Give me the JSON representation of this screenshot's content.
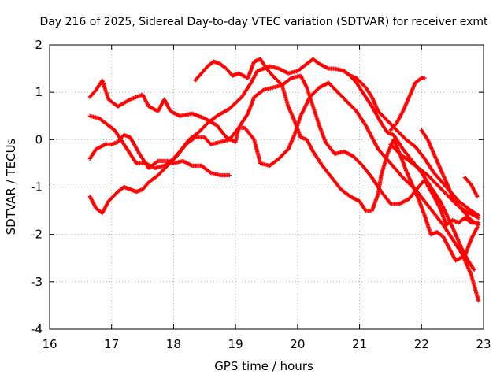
{
  "chart_data": {
    "type": "scatter",
    "title": "Day 216 of 2025, Sidereal Day-to-day VTEC variation (SDTVAR) for receiver exmt",
    "xlabel": "GPS time / hours",
    "ylabel": "SDTVAR / TECUs",
    "xlim": [
      16,
      23
    ],
    "ylim": [
      -4,
      2
    ],
    "xticks": [
      16,
      17,
      18,
      19,
      20,
      21,
      22,
      23
    ],
    "yticks": [
      -4,
      -3,
      -2,
      -1,
      0,
      1,
      2
    ],
    "grid": true,
    "marker": "plus",
    "color": "#ff0000",
    "series": [
      {
        "name": "track-1",
        "points": [
          [
            16.65,
            0.9
          ],
          [
            16.75,
            1.05
          ],
          [
            16.85,
            1.25
          ],
          [
            16.95,
            0.85
          ],
          [
            17.1,
            0.7
          ],
          [
            17.3,
            0.85
          ],
          [
            17.5,
            0.95
          ],
          [
            17.6,
            0.7
          ],
          [
            17.75,
            0.6
          ],
          [
            17.85,
            0.85
          ],
          [
            17.95,
            0.6
          ],
          [
            18.1,
            0.5
          ],
          [
            18.3,
            0.55
          ],
          [
            18.5,
            0.45
          ],
          [
            18.7,
            0.3
          ],
          [
            18.85,
            0.05
          ],
          [
            19.0,
            -0.05
          ],
          [
            19.05,
            0.25
          ],
          [
            19.15,
            0.25
          ],
          [
            19.3,
            0.0
          ],
          [
            19.4,
            -0.5
          ],
          [
            19.55,
            -0.55
          ],
          [
            19.7,
            -0.4
          ],
          [
            19.85,
            -0.2
          ],
          [
            19.95,
            0.1
          ],
          [
            20.05,
            0.5
          ],
          [
            20.2,
            0.9
          ],
          [
            20.35,
            1.1
          ],
          [
            20.5,
            1.2
          ],
          [
            20.65,
            1.0
          ],
          [
            20.8,
            0.8
          ],
          [
            20.95,
            0.6
          ],
          [
            21.1,
            0.3
          ],
          [
            21.2,
            0.05
          ],
          [
            21.3,
            -0.2
          ],
          [
            21.5,
            -0.5
          ],
          [
            21.7,
            -0.8
          ],
          [
            21.9,
            -1.05
          ],
          [
            22.05,
            -1.3
          ],
          [
            22.2,
            -1.55
          ],
          [
            22.35,
            -1.8
          ],
          [
            22.5,
            -2.1
          ],
          [
            22.65,
            -2.4
          ],
          [
            22.8,
            -2.85
          ],
          [
            22.92,
            -3.4
          ]
        ]
      },
      {
        "name": "track-2",
        "points": [
          [
            16.65,
            0.5
          ],
          [
            16.8,
            0.45
          ],
          [
            16.95,
            0.3
          ],
          [
            17.05,
            0.2
          ],
          [
            17.15,
            0.0
          ],
          [
            17.3,
            -0.3
          ],
          [
            17.4,
            -0.5
          ],
          [
            17.55,
            -0.5
          ],
          [
            17.7,
            -0.6
          ],
          [
            17.85,
            -0.55
          ],
          [
            18.0,
            -0.4
          ],
          [
            18.1,
            -0.25
          ],
          [
            18.25,
            0.0
          ],
          [
            18.4,
            0.15
          ],
          [
            18.55,
            0.35
          ],
          [
            18.7,
            0.5
          ],
          [
            18.9,
            0.65
          ],
          [
            19.1,
            0.9
          ],
          [
            19.25,
            1.2
          ],
          [
            19.35,
            1.45
          ],
          [
            19.45,
            1.5
          ],
          [
            19.55,
            1.55
          ],
          [
            19.7,
            1.5
          ],
          [
            19.85,
            1.4
          ],
          [
            20.0,
            1.45
          ],
          [
            20.15,
            1.6
          ],
          [
            20.25,
            1.7
          ],
          [
            20.35,
            1.6
          ],
          [
            20.5,
            1.5
          ],
          [
            20.6,
            1.5
          ],
          [
            20.75,
            1.45
          ],
          [
            20.85,
            1.35
          ],
          [
            20.95,
            1.3
          ],
          [
            21.1,
            1.1
          ],
          [
            21.2,
            0.9
          ],
          [
            21.3,
            0.6
          ],
          [
            21.45,
            0.4
          ],
          [
            21.6,
            0.2
          ],
          [
            21.75,
            0.0
          ],
          [
            21.9,
            -0.15
          ],
          [
            22.05,
            -0.4
          ],
          [
            22.2,
            -0.7
          ],
          [
            22.4,
            -1.0
          ],
          [
            22.6,
            -1.3
          ],
          [
            22.8,
            -1.5
          ],
          [
            22.92,
            -1.6
          ]
        ]
      },
      {
        "name": "track-3",
        "points": [
          [
            16.65,
            -0.4
          ],
          [
            16.75,
            -0.2
          ],
          [
            16.9,
            -0.1
          ],
          [
            17.0,
            -0.1
          ],
          [
            17.1,
            -0.05
          ],
          [
            17.2,
            0.1
          ],
          [
            17.3,
            0.05
          ],
          [
            17.45,
            -0.3
          ],
          [
            17.6,
            -0.6
          ],
          [
            17.75,
            -0.45
          ],
          [
            17.9,
            -0.45
          ],
          [
            18.0,
            -0.5
          ],
          [
            18.15,
            -0.45
          ],
          [
            18.3,
            -0.55
          ],
          [
            18.45,
            -0.55
          ],
          [
            18.6,
            -0.7
          ],
          [
            18.75,
            -0.75
          ],
          [
            18.9,
            -0.75
          ]
        ]
      },
      {
        "name": "track-4",
        "points": [
          [
            16.65,
            -1.2
          ],
          [
            16.75,
            -1.45
          ],
          [
            16.85,
            -1.55
          ],
          [
            16.95,
            -1.3
          ],
          [
            17.1,
            -1.1
          ],
          [
            17.2,
            -1.0
          ],
          [
            17.3,
            -1.05
          ],
          [
            17.4,
            -1.1
          ],
          [
            17.5,
            -1.05
          ],
          [
            17.6,
            -0.9
          ],
          [
            17.75,
            -0.75
          ],
          [
            17.9,
            -0.55
          ],
          [
            18.05,
            -0.35
          ],
          [
            18.2,
            -0.1
          ],
          [
            18.35,
            0.05
          ],
          [
            18.5,
            0.05
          ],
          [
            18.6,
            -0.1
          ],
          [
            18.75,
            -0.05
          ],
          [
            18.9,
            0.0
          ],
          [
            19.05,
            0.25
          ],
          [
            19.2,
            0.55
          ],
          [
            19.3,
            0.9
          ],
          [
            19.45,
            1.05
          ],
          [
            19.6,
            1.1
          ],
          [
            19.75,
            1.15
          ],
          [
            19.9,
            1.3
          ],
          [
            20.05,
            1.35
          ],
          [
            20.15,
            1.1
          ],
          [
            20.25,
            0.7
          ],
          [
            20.35,
            0.3
          ],
          [
            20.45,
            -0.05
          ],
          [
            20.6,
            -0.3
          ],
          [
            20.75,
            -0.25
          ],
          [
            20.9,
            -0.35
          ],
          [
            21.05,
            -0.55
          ],
          [
            21.2,
            -0.8
          ],
          [
            21.35,
            -1.1
          ],
          [
            21.5,
            -1.35
          ],
          [
            21.65,
            -1.35
          ],
          [
            21.8,
            -1.25
          ],
          [
            21.95,
            -1.0
          ],
          [
            22.05,
            -0.85
          ],
          [
            22.2,
            -1.2
          ],
          [
            22.3,
            -1.45
          ],
          [
            22.4,
            -1.8
          ],
          [
            22.5,
            -1.7
          ],
          [
            22.6,
            -1.75
          ],
          [
            22.7,
            -1.65
          ],
          [
            22.8,
            -1.75
          ],
          [
            22.92,
            -1.75
          ]
        ]
      },
      {
        "name": "track-5",
        "points": [
          [
            18.35,
            1.25
          ],
          [
            18.45,
            1.4
          ],
          [
            18.55,
            1.55
          ],
          [
            18.65,
            1.65
          ],
          [
            18.75,
            1.6
          ],
          [
            18.85,
            1.5
          ],
          [
            18.95,
            1.35
          ],
          [
            19.05,
            1.4
          ],
          [
            19.2,
            1.3
          ],
          [
            19.3,
            1.65
          ],
          [
            19.4,
            1.7
          ],
          [
            19.5,
            1.5
          ],
          [
            19.6,
            1.35
          ],
          [
            19.75,
            1.15
          ],
          [
            19.85,
            0.7
          ],
          [
            19.95,
            0.4
          ],
          [
            20.05,
            0.05
          ],
          [
            20.15,
            0.0
          ],
          [
            20.25,
            -0.25
          ],
          [
            20.4,
            -0.55
          ],
          [
            20.55,
            -0.8
          ],
          [
            20.7,
            -1.05
          ],
          [
            20.85,
            -1.2
          ],
          [
            21.0,
            -1.3
          ],
          [
            21.1,
            -1.5
          ],
          [
            21.2,
            -1.5
          ],
          [
            21.3,
            -1.15
          ],
          [
            21.35,
            -0.75
          ],
          [
            21.45,
            -0.3
          ],
          [
            21.55,
            0.0
          ],
          [
            21.65,
            -0.3
          ],
          [
            21.75,
            -0.65
          ],
          [
            21.85,
            -0.95
          ],
          [
            21.95,
            -1.25
          ],
          [
            22.05,
            -1.6
          ],
          [
            22.15,
            -2.0
          ],
          [
            22.25,
            -1.95
          ],
          [
            22.35,
            -2.05
          ],
          [
            22.45,
            -2.3
          ],
          [
            22.55,
            -2.55
          ],
          [
            22.7,
            -2.45
          ],
          [
            22.8,
            -2.1
          ],
          [
            22.9,
            -1.85
          ]
        ]
      },
      {
        "name": "track-6",
        "points": [
          [
            20.75,
            1.45
          ],
          [
            20.85,
            1.35
          ],
          [
            20.95,
            1.2
          ],
          [
            21.05,
            1.0
          ],
          [
            21.2,
            0.7
          ],
          [
            21.35,
            0.35
          ],
          [
            21.45,
            0.15
          ],
          [
            21.55,
            0.1
          ],
          [
            21.7,
            -0.2
          ],
          [
            21.85,
            -0.45
          ],
          [
            22.0,
            -0.7
          ],
          [
            22.15,
            -1.0
          ],
          [
            22.3,
            -1.3
          ],
          [
            22.45,
            -1.7
          ],
          [
            22.55,
            -2.0
          ],
          [
            22.65,
            -2.3
          ],
          [
            22.75,
            -2.55
          ],
          [
            22.85,
            -2.75
          ]
        ]
      },
      {
        "name": "track-7",
        "points": [
          [
            21.5,
            0.2
          ],
          [
            21.6,
            0.35
          ],
          [
            21.7,
            0.6
          ],
          [
            21.8,
            0.9
          ],
          [
            21.9,
            1.2
          ],
          [
            22.0,
            1.3
          ],
          [
            22.05,
            1.3
          ]
        ]
      },
      {
        "name": "track-8",
        "points": [
          [
            22.0,
            0.2
          ],
          [
            22.1,
            0.0
          ],
          [
            22.2,
            -0.3
          ],
          [
            22.3,
            -0.6
          ],
          [
            22.4,
            -0.9
          ],
          [
            22.5,
            -1.2
          ],
          [
            22.6,
            -1.4
          ],
          [
            22.7,
            -1.55
          ],
          [
            22.8,
            -1.7
          ],
          [
            22.92,
            -1.8
          ]
        ]
      },
      {
        "name": "track-9",
        "points": [
          [
            22.7,
            -0.8
          ],
          [
            22.8,
            -0.95
          ],
          [
            22.9,
            -1.2
          ]
        ]
      },
      {
        "name": "track-10",
        "points": [
          [
            21.5,
            -0.1
          ],
          [
            21.65,
            -0.3
          ],
          [
            21.8,
            -0.45
          ],
          [
            21.95,
            -0.6
          ],
          [
            22.1,
            -0.75
          ],
          [
            22.25,
            -0.95
          ],
          [
            22.4,
            -1.15
          ],
          [
            22.55,
            -1.35
          ],
          [
            22.7,
            -1.5
          ],
          [
            22.85,
            -1.6
          ],
          [
            22.92,
            -1.65
          ]
        ]
      }
    ]
  }
}
